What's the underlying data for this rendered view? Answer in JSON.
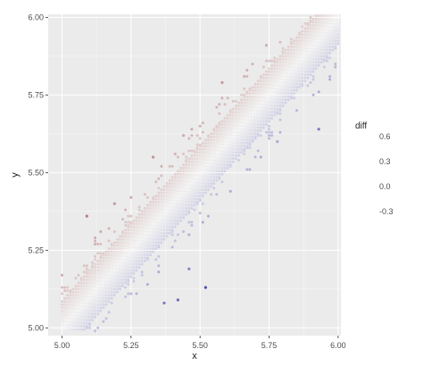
{
  "chart_data": {
    "type": "scatter",
    "title": "",
    "xlabel": "x",
    "ylabel": "y",
    "xlim": [
      4.95,
      6.01
    ],
    "ylim": [
      4.975,
      6.01
    ],
    "x_ticks": [
      5.0,
      5.25,
      5.5,
      5.75,
      6.0
    ],
    "x_tick_labels": [
      "5.00",
      "5.25",
      "5.50",
      "5.75",
      "6.00"
    ],
    "y_ticks": [
      5.0,
      5.25,
      5.5,
      5.75,
      6.0
    ],
    "y_tick_labels": [
      "5.00",
      "5.25",
      "5.50",
      "5.75",
      "6.00"
    ],
    "grid": true,
    "point_grid_step": 0.01,
    "band_halfwidth": 0.085,
    "outliers": [
      {
        "x": 5.09,
        "y": 5.36,
        "diff": 0.27
      },
      {
        "x": 5.52,
        "y": 5.13,
        "diff": -0.39
      },
      {
        "x": 5.46,
        "y": 5.19,
        "diff": -0.27
      },
      {
        "x": 5.37,
        "y": 5.08,
        "diff": -0.29
      },
      {
        "x": 5.42,
        "y": 5.09,
        "diff": -0.33
      },
      {
        "x": 5.93,
        "y": 5.64,
        "diff": -0.29
      },
      {
        "x": 5.58,
        "y": 5.79,
        "diff": 0.21
      },
      {
        "x": 5.33,
        "y": 5.55,
        "diff": 0.22
      },
      {
        "x": 5.19,
        "y": 5.4,
        "diff": 0.21
      },
      {
        "x": 5.66,
        "y": 5.81,
        "diff": 0.15
      },
      {
        "x": 5.12,
        "y": 5.27,
        "diff": 0.15
      },
      {
        "x": 5.78,
        "y": 5.6,
        "diff": -0.18
      },
      {
        "x": 5.35,
        "y": 5.18,
        "diff": -0.17
      },
      {
        "x": 5.61,
        "y": 5.44,
        "diff": -0.17
      },
      {
        "x": 5.25,
        "y": 5.11,
        "diff": -0.14
      }
    ],
    "legend": {
      "title": "diff",
      "labels": [
        "0.6",
        "0.3",
        "0.0",
        "-0.3"
      ],
      "values": [
        0.6,
        0.3,
        0.0,
        -0.3
      ],
      "position": "right"
    },
    "colors": {
      "panel_bg": "#ebebeb",
      "grid": "#ffffff",
      "high": "#8b2d2d",
      "mid": "#f7f7f7",
      "low": "#35389b",
      "text": "#4d4d4d"
    }
  }
}
